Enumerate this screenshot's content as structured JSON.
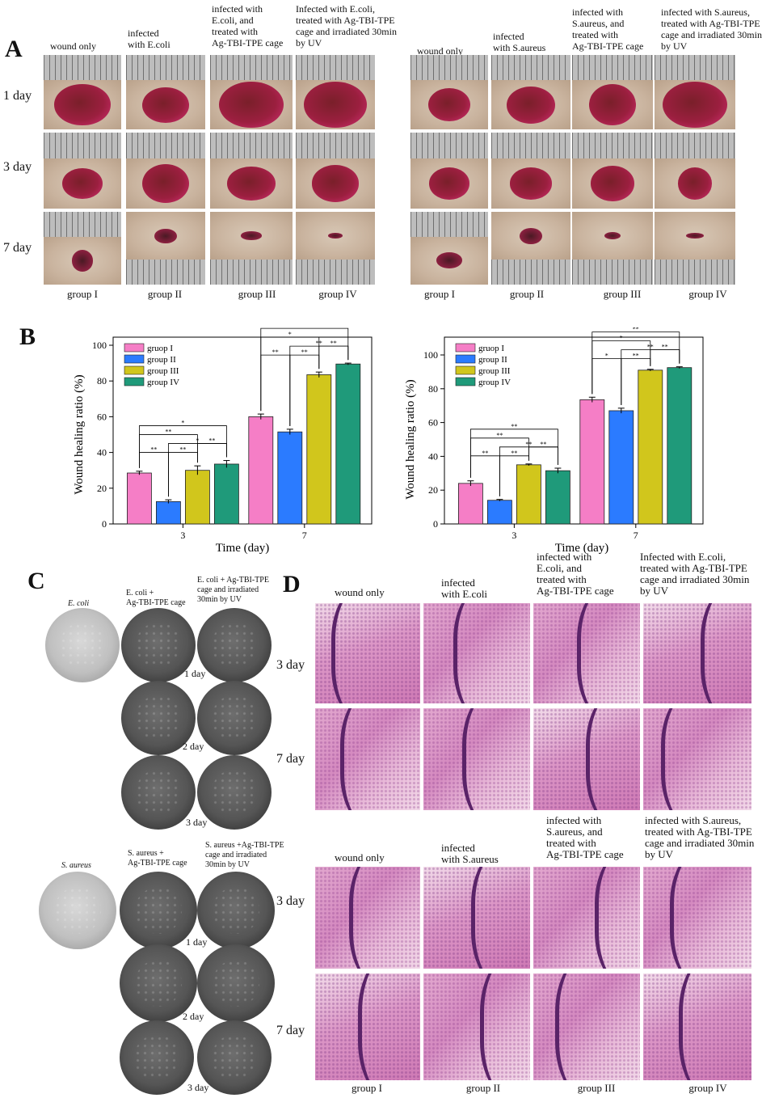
{
  "panels": {
    "A": "A",
    "B": "B",
    "C": "C",
    "D": "D"
  },
  "panelA": {
    "ecoli_cols": [
      "wound only",
      "infected\nwith E.coli",
      "infected with\nE.coli, and\ntreated with\nAg-TBI-TPE cage",
      "Infected with E.coli,\ntreated with Ag-TBI-TPE\ncage and irradiated 30min\nby UV"
    ],
    "saureus_cols": [
      "wound only",
      "infected\nwith S.aureus",
      "infected with\nS.aureus, and\ntreated with\nAg-TBI-TPE cage",
      "infected with S.aureus,\ntreated with  Ag-TBI-TPE\ncage and irradiated 30min\nby UV"
    ],
    "rows": [
      "1 day",
      "3 day",
      "7 day"
    ],
    "groups": [
      "group I",
      "group II",
      "group III",
      "group IV"
    ]
  },
  "chart_data": [
    {
      "type": "bar",
      "categories": [
        "3",
        "7"
      ],
      "series": [
        {
          "name": "gruop I",
          "values": [
            28.5,
            60
          ],
          "color": "#f57ec6"
        },
        {
          "name": "group II",
          "values": [
            12.5,
            51.5
          ],
          "color": "#2b7bff"
        },
        {
          "name": "group III",
          "values": [
            30,
            83.5
          ],
          "color": "#d1c61c"
        },
        {
          "name": "group IV",
          "values": [
            33.5,
            89.5
          ],
          "color": "#1f9a7a"
        }
      ],
      "errors": [
        [
          1,
          1.5
        ],
        [
          1,
          1.5
        ],
        [
          2.5,
          1.5
        ],
        [
          2,
          0.5
        ]
      ],
      "xlabel": "Time (day)",
      "ylabel": "Wound healing ratio (%)",
      "ylim": [
        0,
        100
      ],
      "yticks": [
        "0",
        "20",
        "40",
        "60",
        "80",
        "100"
      ],
      "legend": "top-left",
      "sig": [
        "**",
        "**",
        "**",
        "*",
        "**",
        "*",
        "**",
        "**",
        "**",
        "**",
        "*",
        "**"
      ]
    },
    {
      "type": "bar",
      "categories": [
        "3",
        "7"
      ],
      "series": [
        {
          "name": "gruop I",
          "values": [
            24,
            73.5
          ],
          "color": "#f57ec6"
        },
        {
          "name": "group II",
          "values": [
            14,
            67
          ],
          "color": "#2b7bff"
        },
        {
          "name": "group III",
          "values": [
            35,
            91
          ],
          "color": "#d1c61c"
        },
        {
          "name": "group IV",
          "values": [
            31.5,
            92.5
          ],
          "color": "#1f9a7a"
        }
      ],
      "errors": [
        [
          1.5,
          1.5
        ],
        [
          0.5,
          1.5
        ],
        [
          0.5,
          0.5
        ],
        [
          1.5,
          0.5
        ]
      ],
      "xlabel": "Time (day)",
      "ylabel": "Wound healing ratio (%)",
      "ylim": [
        0,
        100
      ],
      "yticks": [
        "0",
        "20",
        "40",
        "60",
        "80",
        "100"
      ],
      "legend": "top-left",
      "sig": [
        "**",
        "**",
        "**",
        "**",
        "**",
        "**",
        "*",
        "**",
        "**",
        "**",
        "*",
        "**"
      ]
    }
  ],
  "panelC": {
    "ecoli_heads": [
      "E. coli",
      "E. coli +\nAg-TBI-TPE cage",
      "E. coli + Ag-TBI-TPE\ncage and irradiated\n30min by UV"
    ],
    "saureus_heads": [
      "S. aureus",
      "S. aureus +\nAg-TBI-TPE cage",
      "S. aureus +Ag-TBI-TPE\ncage and irradiated\n30min by UV"
    ],
    "days": [
      "1 day",
      "2 day",
      "3 day"
    ]
  },
  "panelD": {
    "ecoli_cols": [
      "wound only",
      "infected\nwith E.coli",
      "infected with\nE.coli, and\ntreated with\nAg-TBI-TPE cage",
      "Infected with E.coli,\ntreated with Ag-TBI-TPE\ncage and irradiated 30min\nby UV"
    ],
    "saureus_cols": [
      "wound only",
      "infected\nwith S.aureus",
      "infected with\nS.aureus, and\ntreated with\nAg-TBI-TPE cage",
      "infected with S.aureus,\ntreated with  Ag-TBI-TPE\ncage and irradiated 30min\nby UV"
    ],
    "rows": [
      "3 day",
      "7 day"
    ],
    "groups": [
      "group I",
      "group II",
      "group III",
      "group IV"
    ]
  }
}
